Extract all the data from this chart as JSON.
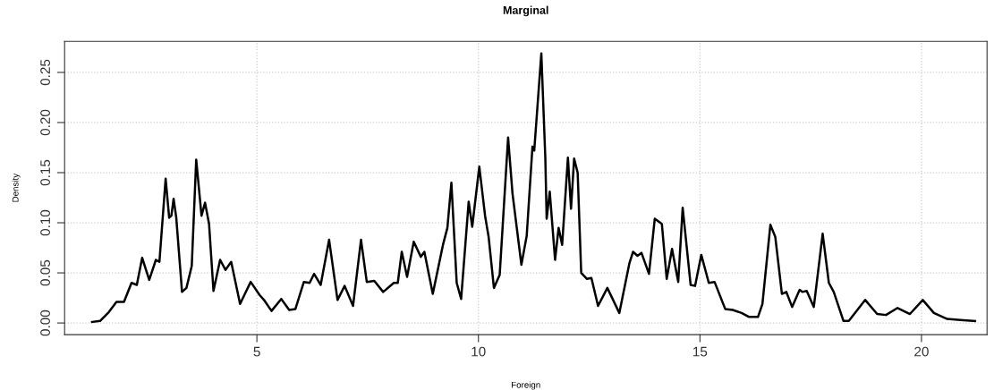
{
  "chart_data": {
    "type": "line",
    "title": "Marginal",
    "xlabel": "Foreign",
    "ylabel": "Density",
    "xlim": [
      0.66,
      21.48
    ],
    "ylim": [
      -0.0116,
      0.281
    ],
    "xticks": [
      5,
      10,
      15,
      20
    ],
    "yticks": [
      {
        "value": 0,
        "label": "0.00"
      },
      {
        "value": 0.05,
        "label": "0.05"
      },
      {
        "value": 0.1,
        "label": "0.10"
      },
      {
        "value": 0.15,
        "label": "0.15"
      },
      {
        "value": 0.2,
        "label": "0.20"
      },
      {
        "value": 0.25,
        "label": "0.25"
      }
    ],
    "grid": true,
    "line_style": "solid",
    "marker": "none",
    "series": [
      {
        "color": "#000000",
        "x": [
          1.28,
          1.46,
          1.66,
          1.83,
          2.0,
          2.17,
          2.29,
          2.41,
          2.57,
          2.72,
          2.8,
          2.94,
          3.02,
          3.07,
          3.12,
          3.18,
          3.31,
          3.41,
          3.53,
          3.63,
          3.75,
          3.83,
          3.92,
          4.02,
          4.17,
          4.29,
          4.42,
          4.62,
          4.86,
          5.06,
          5.16,
          5.33,
          5.55,
          5.73,
          5.87,
          6.06,
          6.19,
          6.29,
          6.44,
          6.63,
          6.82,
          6.98,
          7.17,
          7.35,
          7.48,
          7.65,
          7.85,
          8.09,
          8.18,
          8.27,
          8.39,
          8.54,
          8.7,
          8.78,
          8.97,
          9.2,
          9.3,
          9.39,
          9.51,
          9.61,
          9.78,
          9.86,
          10.02,
          10.15,
          10.23,
          10.35,
          10.48,
          10.67,
          10.77,
          10.97,
          11.09,
          11.22,
          11.26,
          11.42,
          11.51,
          11.54,
          11.61,
          11.73,
          11.81,
          11.89,
          12.02,
          12.09,
          12.16,
          12.24,
          12.32,
          12.45,
          12.55,
          12.7,
          12.91,
          13.18,
          13.41,
          13.49,
          13.59,
          13.68,
          13.85,
          13.98,
          14.14,
          14.25,
          14.37,
          14.51,
          14.61,
          14.79,
          14.89,
          15.03,
          15.2,
          15.33,
          15.57,
          15.74,
          15.94,
          16.11,
          16.31,
          16.41,
          16.59,
          16.7,
          16.85,
          16.95,
          17.08,
          17.25,
          17.31,
          17.41,
          17.57,
          17.77,
          17.91,
          18.02,
          18.24,
          18.36,
          18.73,
          19.0,
          19.2,
          19.46,
          19.74,
          20.03,
          20.28,
          20.58,
          20.88,
          21.21
        ],
        "values": [
          0.001,
          0.002,
          0.011,
          0.021,
          0.021,
          0.04,
          0.038,
          0.065,
          0.043,
          0.063,
          0.061,
          0.144,
          0.105,
          0.107,
          0.124,
          0.105,
          0.031,
          0.035,
          0.057,
          0.163,
          0.107,
          0.12,
          0.099,
          0.032,
          0.063,
          0.053,
          0.061,
          0.019,
          0.041,
          0.028,
          0.023,
          0.012,
          0.024,
          0.013,
          0.014,
          0.041,
          0.04,
          0.049,
          0.038,
          0.083,
          0.023,
          0.037,
          0.017,
          0.083,
          0.041,
          0.042,
          0.031,
          0.04,
          0.04,
          0.071,
          0.046,
          0.081,
          0.066,
          0.071,
          0.029,
          0.078,
          0.095,
          0.14,
          0.04,
          0.024,
          0.121,
          0.096,
          0.156,
          0.107,
          0.086,
          0.035,
          0.048,
          0.185,
          0.129,
          0.058,
          0.087,
          0.176,
          0.172,
          0.269,
          0.165,
          0.104,
          0.131,
          0.063,
          0.095,
          0.078,
          0.165,
          0.114,
          0.164,
          0.15,
          0.05,
          0.044,
          0.045,
          0.017,
          0.035,
          0.01,
          0.06,
          0.071,
          0.067,
          0.07,
          0.049,
          0.104,
          0.099,
          0.044,
          0.074,
          0.041,
          0.115,
          0.038,
          0.037,
          0.068,
          0.04,
          0.041,
          0.014,
          0.013,
          0.01,
          0.006,
          0.006,
          0.019,
          0.098,
          0.086,
          0.029,
          0.031,
          0.016,
          0.033,
          0.031,
          0.032,
          0.016,
          0.089,
          0.04,
          0.031,
          0.002,
          0.002,
          0.023,
          0.009,
          0.008,
          0.015,
          0.009,
          0.023,
          0.01,
          0.004,
          0.003,
          0.002
        ]
      }
    ]
  }
}
